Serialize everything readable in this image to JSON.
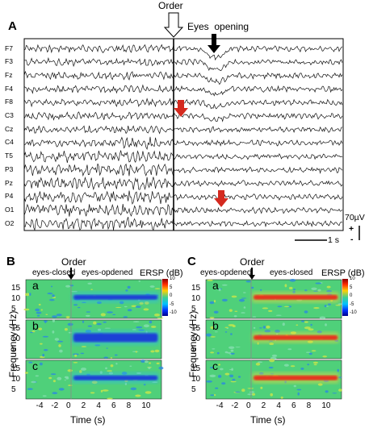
{
  "panelA": {
    "letter": "A",
    "order_label": "Order",
    "eyes_label": "Eyes  opening",
    "channels": [
      "F7",
      "F3",
      "Fz",
      "F4",
      "F8",
      "C3",
      "Cz",
      "C4",
      "T5",
      "P3",
      "Pz",
      "P4",
      "O1",
      "O2"
    ],
    "scale_voltage": "70µV",
    "scale_plus": "+",
    "scale_minus": "-",
    "scale_time": "1 s"
  },
  "panelB": {
    "letter": "B",
    "order_label": "Order",
    "left_state": "eyes-closed",
    "right_state": "eyes-opdened",
    "ersp_label": "ERSP (dB)",
    "sublabels": [
      "a",
      "b",
      "c"
    ],
    "colorbar_ticks": [
      "10",
      "5",
      "0",
      "-5",
      "-10"
    ],
    "x_ticks": [
      "-4",
      "-2",
      "0",
      "2",
      "4",
      "6",
      "8",
      "10"
    ],
    "y_ticks": [
      "15",
      "10",
      "5"
    ],
    "ylabel": "Frequency (Hz)",
    "xlabel": "Time (s)"
  },
  "panelC": {
    "letter": "C",
    "order_label": "Order",
    "left_state": "eyes-opdened",
    "right_state": "eyes-closed",
    "ersp_label": "ERSP (dB)",
    "sublabels": [
      "a",
      "b",
      "c"
    ],
    "colorbar_ticks": [
      "10",
      "5",
      "0",
      "-5",
      "-10"
    ],
    "x_ticks": [
      "-4",
      "-2",
      "0",
      "2",
      "4",
      "6",
      "8",
      "10"
    ],
    "y_ticks": [
      "15",
      "10",
      "5"
    ],
    "ylabel": "Frequency (Hz)",
    "xlabel": "Time (s)"
  },
  "colors": {
    "ersp_background": "#4fd07a",
    "ersp_blue": "#1f3fd6",
    "ersp_red": "#e8321e",
    "ersp_yellow": "#f1d83a",
    "marker_red": "#d42a1f"
  }
}
